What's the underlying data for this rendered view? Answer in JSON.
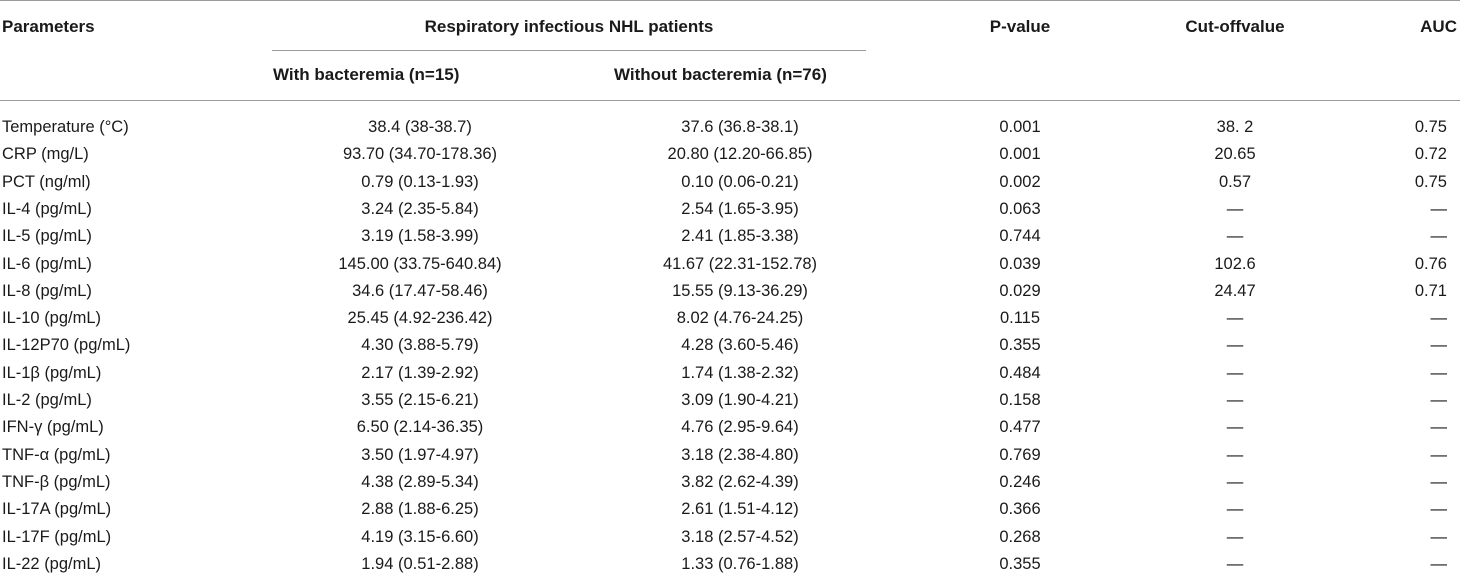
{
  "header": {
    "parameters": "Parameters",
    "group": "Respiratory infectious NHL patients",
    "with_bacteremia": "With bacteremia (n=15)",
    "without_bacteremia": "Without bacteremia (n=76)",
    "p_value": "P-value",
    "cutoff": "Cut-offvalue",
    "auc": "AUC"
  },
  "rows": [
    {
      "param": "Temperature (°C)",
      "with": "38.4 (38-38.7)",
      "without": "37.6 (36.8-38.1)",
      "p": "0.001",
      "cutoff": "38. 2",
      "auc": "0.75"
    },
    {
      "param": "CRP (mg/L)",
      "with": "93.70 (34.70-178.36)",
      "without": "20.80 (12.20-66.85)",
      "p": "0.001",
      "cutoff": "20.65",
      "auc": "0.72"
    },
    {
      "param": "PCT (ng/ml)",
      "with": "0.79 (0.13-1.93)",
      "without": "0.10 (0.06-0.21)",
      "p": "0.002",
      "cutoff": "0.57",
      "auc": "0.75"
    },
    {
      "param": "IL-4 (pg/mL)",
      "with": "3.24 (2.35-5.84)",
      "without": "2.54 (1.65-3.95)",
      "p": "0.063",
      "cutoff": "—",
      "auc": "—"
    },
    {
      "param": "IL-5 (pg/mL)",
      "with": "3.19 (1.58-3.99)",
      "without": "2.41 (1.85-3.38)",
      "p": "0.744",
      "cutoff": "—",
      "auc": "—"
    },
    {
      "param": "IL-6 (pg/mL)",
      "with": "145.00 (33.75-640.84)",
      "without": "41.67 (22.31-152.78)",
      "p": "0.039",
      "cutoff": "102.6",
      "auc": "0.76"
    },
    {
      "param": "IL-8 (pg/mL)",
      "with": "34.6 (17.47-58.46)",
      "without": "15.55 (9.13-36.29)",
      "p": "0.029",
      "cutoff": "24.47",
      "auc": "0.71"
    },
    {
      "param": "IL-10 (pg/mL)",
      "with": "25.45 (4.92-236.42)",
      "without": "8.02 (4.76-24.25)",
      "p": "0.115",
      "cutoff": "—",
      "auc": "—"
    },
    {
      "param": "IL-12P70 (pg/mL)",
      "with": "4.30 (3.88-5.79)",
      "without": "4.28 (3.60-5.46)",
      "p": "0.355",
      "cutoff": "—",
      "auc": "—"
    },
    {
      "param": "IL-1β (pg/mL)",
      "with": "2.17 (1.39-2.92)",
      "without": "1.74 (1.38-2.32)",
      "p": "0.484",
      "cutoff": "—",
      "auc": "—"
    },
    {
      "param": "IL-2 (pg/mL)",
      "with": "3.55 (2.15-6.21)",
      "without": "3.09 (1.90-4.21)",
      "p": "0.158",
      "cutoff": "—",
      "auc": "—"
    },
    {
      "param": "IFN-γ (pg/mL)",
      "with": "6.50 (2.14-36.35)",
      "without": "4.76 (2.95-9.64)",
      "p": "0.477",
      "cutoff": "—",
      "auc": "—"
    },
    {
      "param": "TNF-α (pg/mL)",
      "with": "3.50 (1.97-4.97)",
      "without": "3.18 (2.38-4.80)",
      "p": "0.769",
      "cutoff": "—",
      "auc": "—"
    },
    {
      "param": "TNF-β (pg/mL)",
      "with": "4.38 (2.89-5.34)",
      "without": "3.82 (2.62-4.39)",
      "p": "0.246",
      "cutoff": "—",
      "auc": "—"
    },
    {
      "param": "IL-17A (pg/mL)",
      "with": "2.88 (1.88-6.25)",
      "without": "2.61 (1.51-4.12)",
      "p": "0.366",
      "cutoff": "—",
      "auc": "—"
    },
    {
      "param": "IL-17F (pg/mL)",
      "with": "4.19 (3.15-6.60)",
      "without": "3.18 (2.57-4.52)",
      "p": "0.268",
      "cutoff": "—",
      "auc": "—"
    },
    {
      "param": "IL-22 (pg/mL)",
      "with": "1.94 (0.51-2.88)",
      "without": "1.33 (0.76-1.88)",
      "p": "0.355",
      "cutoff": "—",
      "auc": "—"
    }
  ]
}
